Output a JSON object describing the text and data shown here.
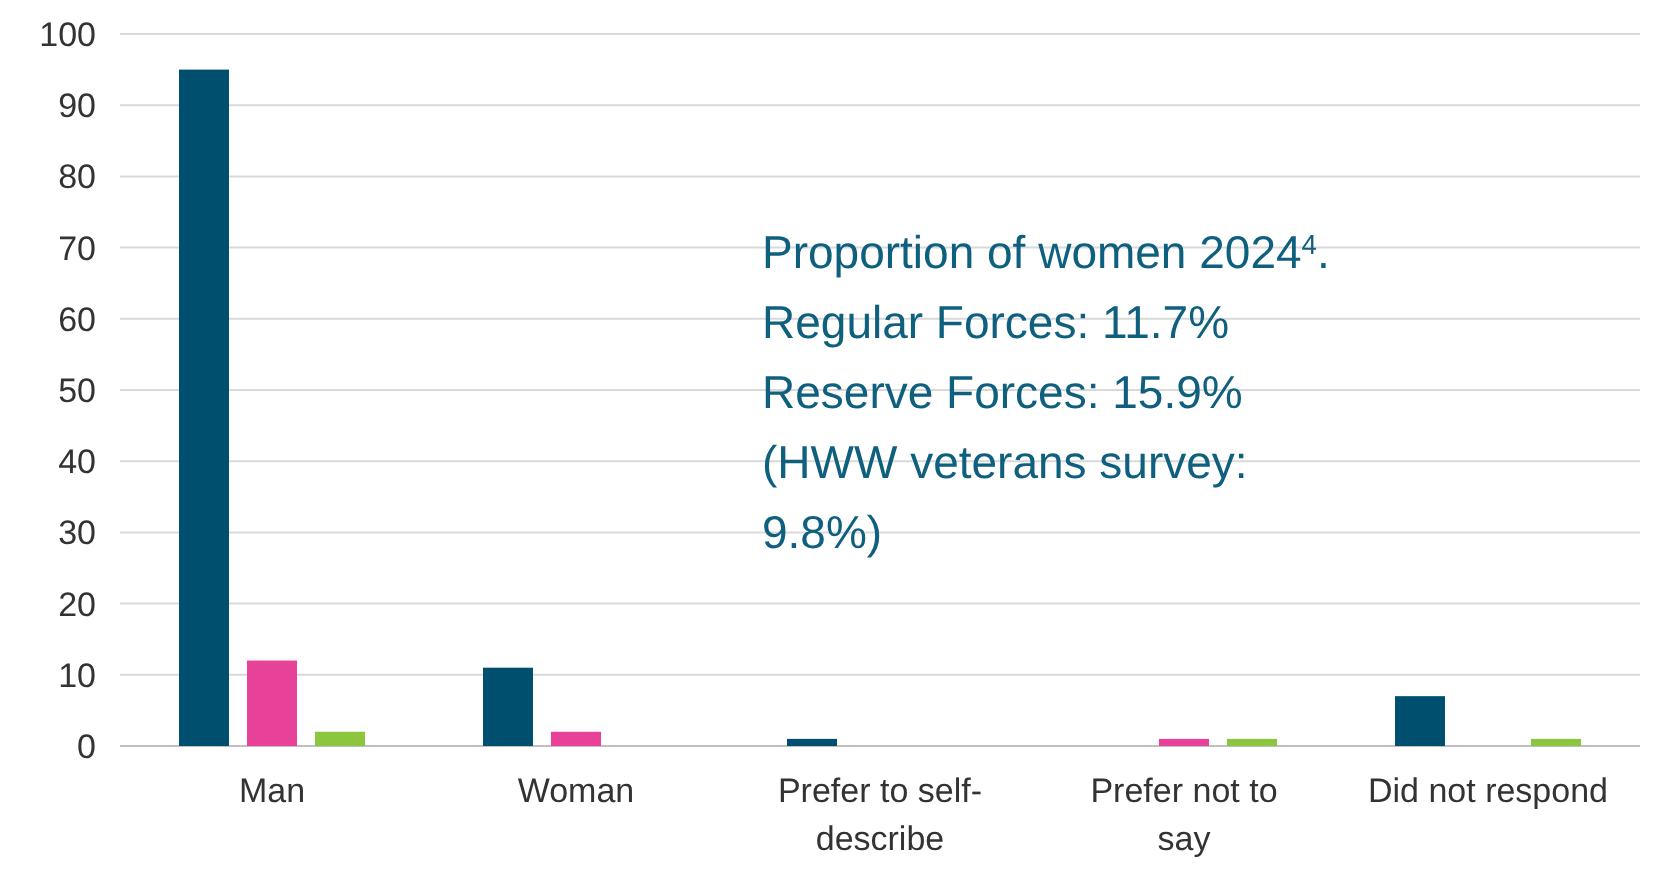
{
  "chart_data": {
    "type": "bar",
    "categories": [
      "Man",
      "Woman",
      "Prefer to self-describe",
      "Prefer not to say",
      "Did not respond"
    ],
    "series": [
      {
        "color": "#004f6e",
        "values": [
          95,
          11,
          1,
          0,
          7
        ]
      },
      {
        "color": "#e8419a",
        "values": [
          12,
          2,
          0,
          1,
          0
        ]
      },
      {
        "color": "#8cc63f",
        "values": [
          2,
          0,
          0,
          1,
          1
        ]
      }
    ],
    "ylim": [
      0,
      100
    ],
    "yticks": [
      0,
      10,
      20,
      30,
      40,
      50,
      60,
      70,
      80,
      90,
      100
    ],
    "grid": "y",
    "annotations": [
      "Proportion of women 2024$^{4}$.",
      "Regular Forces: 11.7%",
      "Reserve Forces: 15.9%",
      "(HWW veterans survey:",
      "9.8%)"
    ]
  }
}
